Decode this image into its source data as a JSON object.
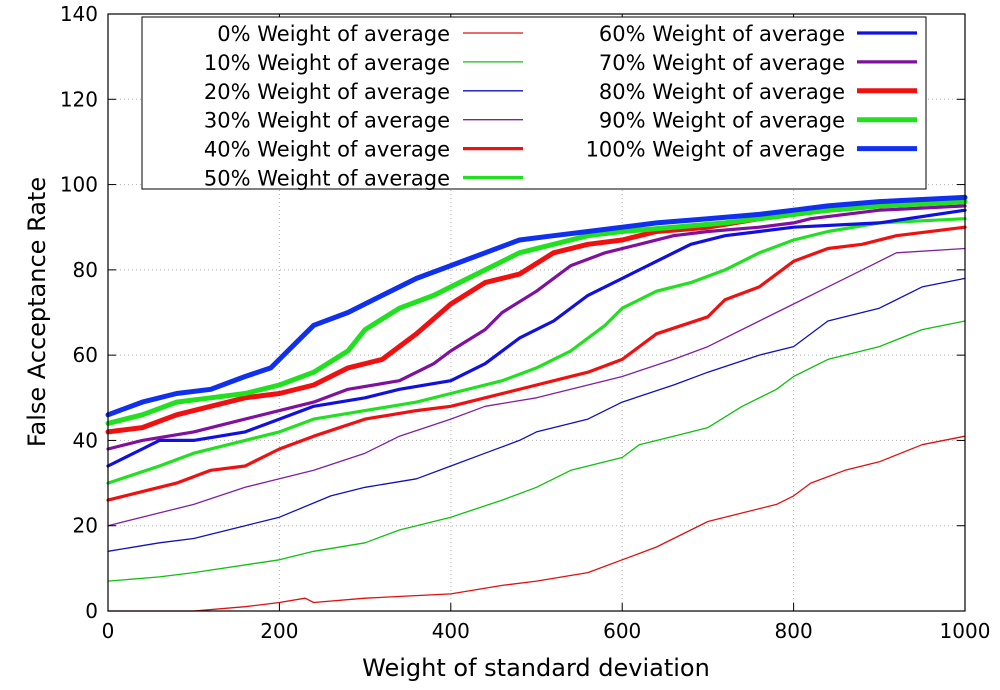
{
  "chart_data": {
    "type": "line",
    "title": "",
    "xlabel": "Weight of standard deviation",
    "ylabel": "False Acceptance Rate",
    "xlim": [
      0,
      1000
    ],
    "ylim": [
      0,
      140
    ],
    "xticks": [
      0,
      200,
      400,
      600,
      800,
      1000
    ],
    "yticks": [
      0,
      20,
      40,
      60,
      80,
      100,
      120,
      140
    ],
    "grid": true,
    "legend_position": "top",
    "series": [
      {
        "name": "0% Weight of average",
        "color": "#e01010",
        "thickness": "thin",
        "points": [
          [
            0,
            0
          ],
          [
            100,
            0
          ],
          [
            160,
            1
          ],
          [
            200,
            2
          ],
          [
            230,
            3
          ],
          [
            240,
            2
          ],
          [
            300,
            3
          ],
          [
            400,
            4
          ],
          [
            460,
            6
          ],
          [
            500,
            7
          ],
          [
            560,
            9
          ],
          [
            600,
            12
          ],
          [
            640,
            15
          ],
          [
            700,
            21
          ],
          [
            780,
            25
          ],
          [
            800,
            27
          ],
          [
            820,
            30
          ],
          [
            860,
            33
          ],
          [
            900,
            35
          ],
          [
            950,
            39
          ],
          [
            1000,
            41
          ]
        ]
      },
      {
        "name": "10% Weight of average",
        "color": "#10c010",
        "thickness": "thin",
        "points": [
          [
            0,
            7
          ],
          [
            60,
            8
          ],
          [
            100,
            9
          ],
          [
            200,
            12
          ],
          [
            240,
            14
          ],
          [
            300,
            16
          ],
          [
            340,
            19
          ],
          [
            380,
            21
          ],
          [
            400,
            22
          ],
          [
            460,
            26
          ],
          [
            500,
            29
          ],
          [
            540,
            33
          ],
          [
            600,
            36
          ],
          [
            620,
            39
          ],
          [
            660,
            41
          ],
          [
            700,
            43
          ],
          [
            740,
            48
          ],
          [
            780,
            52
          ],
          [
            800,
            55
          ],
          [
            840,
            59
          ],
          [
            900,
            62
          ],
          [
            950,
            66
          ],
          [
            1000,
            68
          ]
        ]
      },
      {
        "name": "20% Weight of average",
        "color": "#1010c0",
        "thickness": "thin",
        "points": [
          [
            0,
            14
          ],
          [
            60,
            16
          ],
          [
            100,
            17
          ],
          [
            160,
            20
          ],
          [
            200,
            22
          ],
          [
            260,
            27
          ],
          [
            300,
            29
          ],
          [
            360,
            31
          ],
          [
            400,
            34
          ],
          [
            440,
            37
          ],
          [
            480,
            40
          ],
          [
            500,
            42
          ],
          [
            560,
            45
          ],
          [
            600,
            49
          ],
          [
            660,
            53
          ],
          [
            700,
            56
          ],
          [
            760,
            60
          ],
          [
            800,
            62
          ],
          [
            840,
            68
          ],
          [
            900,
            71
          ],
          [
            950,
            76
          ],
          [
            1000,
            78
          ]
        ]
      },
      {
        "name": "30% Weight of average",
        "color": "#8020a0",
        "thickness": "thin",
        "points": [
          [
            0,
            20
          ],
          [
            60,
            23
          ],
          [
            100,
            25
          ],
          [
            160,
            29
          ],
          [
            200,
            31
          ],
          [
            240,
            33
          ],
          [
            300,
            37
          ],
          [
            340,
            41
          ],
          [
            400,
            45
          ],
          [
            440,
            48
          ],
          [
            500,
            50
          ],
          [
            540,
            52
          ],
          [
            600,
            55
          ],
          [
            660,
            59
          ],
          [
            700,
            62
          ],
          [
            760,
            68
          ],
          [
            800,
            72
          ],
          [
            840,
            76
          ],
          [
            880,
            80
          ],
          [
            920,
            84
          ],
          [
            1000,
            85
          ]
        ]
      },
      {
        "name": "40% Weight of average",
        "color": "#f01010",
        "thickness": "medium",
        "points": [
          [
            0,
            26
          ],
          [
            40,
            28
          ],
          [
            80,
            30
          ],
          [
            120,
            33
          ],
          [
            160,
            34
          ],
          [
            200,
            38
          ],
          [
            240,
            41
          ],
          [
            300,
            45
          ],
          [
            360,
            47
          ],
          [
            400,
            48
          ],
          [
            440,
            50
          ],
          [
            500,
            53
          ],
          [
            560,
            56
          ],
          [
            600,
            59
          ],
          [
            620,
            62
          ],
          [
            640,
            65
          ],
          [
            700,
            69
          ],
          [
            720,
            73
          ],
          [
            760,
            76
          ],
          [
            800,
            82
          ],
          [
            840,
            85
          ],
          [
            880,
            86
          ],
          [
            920,
            88
          ],
          [
            1000,
            90
          ]
        ]
      },
      {
        "name": "50% Weight of average",
        "color": "#20e020",
        "thickness": "medium",
        "points": [
          [
            0,
            30
          ],
          [
            60,
            34
          ],
          [
            100,
            37
          ],
          [
            160,
            40
          ],
          [
            200,
            42
          ],
          [
            240,
            45
          ],
          [
            300,
            47
          ],
          [
            360,
            49
          ],
          [
            400,
            51
          ],
          [
            460,
            54
          ],
          [
            500,
            57
          ],
          [
            540,
            61
          ],
          [
            580,
            67
          ],
          [
            600,
            71
          ],
          [
            640,
            75
          ],
          [
            680,
            77
          ],
          [
            720,
            80
          ],
          [
            760,
            84
          ],
          [
            800,
            87
          ],
          [
            840,
            89
          ],
          [
            900,
            91
          ],
          [
            1000,
            92
          ]
        ]
      },
      {
        "name": "60% Weight of average",
        "color": "#1010e0",
        "thickness": "medium",
        "points": [
          [
            0,
            34
          ],
          [
            40,
            38
          ],
          [
            60,
            40
          ],
          [
            100,
            40
          ],
          [
            160,
            42
          ],
          [
            200,
            45
          ],
          [
            240,
            48
          ],
          [
            300,
            50
          ],
          [
            340,
            52
          ],
          [
            400,
            54
          ],
          [
            440,
            58
          ],
          [
            480,
            64
          ],
          [
            520,
            68
          ],
          [
            560,
            74
          ],
          [
            600,
            78
          ],
          [
            640,
            82
          ],
          [
            680,
            86
          ],
          [
            720,
            88
          ],
          [
            760,
            89
          ],
          [
            800,
            90
          ],
          [
            900,
            91
          ],
          [
            1000,
            94
          ]
        ]
      },
      {
        "name": "70% Weight of average",
        "color": "#8010a0",
        "thickness": "medium",
        "points": [
          [
            0,
            38
          ],
          [
            40,
            40
          ],
          [
            100,
            42
          ],
          [
            160,
            45
          ],
          [
            200,
            47
          ],
          [
            240,
            49
          ],
          [
            280,
            52
          ],
          [
            340,
            54
          ],
          [
            380,
            58
          ],
          [
            400,
            61
          ],
          [
            440,
            66
          ],
          [
            460,
            70
          ],
          [
            500,
            75
          ],
          [
            540,
            81
          ],
          [
            580,
            84
          ],
          [
            620,
            86
          ],
          [
            660,
            88
          ],
          [
            700,
            89
          ],
          [
            760,
            90
          ],
          [
            800,
            91
          ],
          [
            820,
            92
          ],
          [
            900,
            94
          ],
          [
            1000,
            95
          ]
        ]
      },
      {
        "name": "80% Weight of average",
        "color": "#f01010",
        "thickness": "thick",
        "points": [
          [
            0,
            42
          ],
          [
            40,
            43
          ],
          [
            80,
            46
          ],
          [
            120,
            48
          ],
          [
            160,
            50
          ],
          [
            200,
            51
          ],
          [
            240,
            53
          ],
          [
            280,
            57
          ],
          [
            320,
            59
          ],
          [
            360,
            65
          ],
          [
            400,
            72
          ],
          [
            440,
            77
          ],
          [
            480,
            79
          ],
          [
            520,
            84
          ],
          [
            560,
            86
          ],
          [
            600,
            87
          ],
          [
            640,
            89
          ],
          [
            700,
            90
          ],
          [
            760,
            92
          ],
          [
            800,
            93
          ],
          [
            840,
            94
          ],
          [
            900,
            95
          ],
          [
            1000,
            96
          ]
        ]
      },
      {
        "name": "90% Weight of average",
        "color": "#20e020",
        "thickness": "thick",
        "points": [
          [
            0,
            44
          ],
          [
            40,
            46
          ],
          [
            80,
            49
          ],
          [
            120,
            50
          ],
          [
            160,
            51
          ],
          [
            200,
            53
          ],
          [
            240,
            56
          ],
          [
            280,
            61
          ],
          [
            300,
            66
          ],
          [
            340,
            71
          ],
          [
            380,
            74
          ],
          [
            400,
            76
          ],
          [
            440,
            80
          ],
          [
            480,
            84
          ],
          [
            520,
            86
          ],
          [
            560,
            88
          ],
          [
            600,
            89
          ],
          [
            660,
            90
          ],
          [
            720,
            91
          ],
          [
            760,
            92
          ],
          [
            800,
            93
          ],
          [
            840,
            94
          ],
          [
            900,
            95
          ],
          [
            1000,
            96
          ]
        ]
      },
      {
        "name": "100% Weight of average",
        "color": "#1030f0",
        "thickness": "thick",
        "points": [
          [
            0,
            46
          ],
          [
            40,
            49
          ],
          [
            80,
            51
          ],
          [
            120,
            52
          ],
          [
            160,
            55
          ],
          [
            190,
            57
          ],
          [
            220,
            63
          ],
          [
            240,
            67
          ],
          [
            280,
            70
          ],
          [
            320,
            74
          ],
          [
            360,
            78
          ],
          [
            400,
            81
          ],
          [
            440,
            84
          ],
          [
            480,
            87
          ],
          [
            520,
            88
          ],
          [
            560,
            89
          ],
          [
            600,
            90
          ],
          [
            640,
            91
          ],
          [
            700,
            92
          ],
          [
            760,
            93
          ],
          [
            800,
            94
          ],
          [
            840,
            95
          ],
          [
            900,
            96
          ],
          [
            1000,
            97
          ]
        ]
      }
    ]
  }
}
